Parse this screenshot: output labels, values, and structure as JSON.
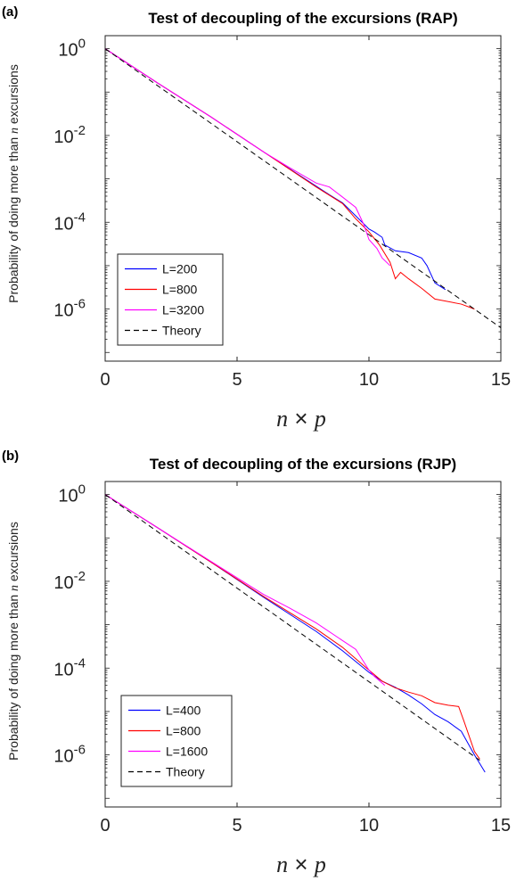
{
  "chart_data": [
    {
      "type": "line",
      "panel": "(a)",
      "title": "Test of decoupling of the excursions (RAP)",
      "xlabel_pre": "n",
      "xlabel_op": " × ",
      "xlabel_post": "p",
      "ylabel_pre": "Probability of doing more than ",
      "ylabel_var": "n",
      "ylabel_post": " excursions",
      "xlim": [
        0,
        15
      ],
      "ylim_exp": [
        -7.2,
        0.3
      ],
      "xticks": [
        "0",
        "5",
        "10",
        "15"
      ],
      "yticks": [
        {
          "base": "10",
          "exp": "0"
        },
        {
          "base": "10",
          "exp": "-2"
        },
        {
          "base": "10",
          "exp": "-4"
        },
        {
          "base": "10",
          "exp": "-6"
        }
      ],
      "legend_position": "bottom-left",
      "series": [
        {
          "name": "L=200",
          "color": "#0000ff",
          "dashed": false,
          "points": [
            [
              0,
              1
            ],
            [
              2,
              0.16
            ],
            [
              4,
              0.027
            ],
            [
              6,
              0.0042
            ],
            [
              8,
              0.00068
            ],
            [
              8.5,
              0.00043
            ],
            [
              9,
              0.00028
            ],
            [
              9.5,
              0.00014
            ],
            [
              10,
              7e-05
            ],
            [
              10.2,
              6e-05
            ],
            [
              10.5,
              4.5e-05
            ],
            [
              10.6,
              3e-05
            ],
            [
              11,
              2.2e-05
            ],
            [
              11.5,
              2e-05
            ],
            [
              12,
              1.5e-05
            ],
            [
              12.2,
              1e-05
            ],
            [
              12.5,
              4e-06
            ],
            [
              12.9,
              2.8e-06
            ]
          ]
        },
        {
          "name": "L=800",
          "color": "#ff0000",
          "dashed": false,
          "points": [
            [
              0,
              1
            ],
            [
              2,
              0.16
            ],
            [
              4,
              0.027
            ],
            [
              6,
              0.0042
            ],
            [
              8,
              0.00065
            ],
            [
              9,
              0.00027
            ],
            [
              9.5,
              0.00012
            ],
            [
              10,
              6e-05
            ],
            [
              10.4,
              3e-05
            ],
            [
              10.8,
              1.2e-05
            ],
            [
              11,
              5e-06
            ],
            [
              11.2,
              7e-06
            ],
            [
              11.5,
              5e-06
            ],
            [
              12,
              3e-06
            ],
            [
              12.5,
              1.7e-06
            ],
            [
              13.5,
              1.3e-06
            ],
            [
              14,
              1e-06
            ]
          ]
        },
        {
          "name": "L=3200",
          "color": "#ff00ff",
          "dashed": false,
          "points": [
            [
              0,
              1
            ],
            [
              2,
              0.16
            ],
            [
              4,
              0.027
            ],
            [
              6,
              0.0042
            ],
            [
              7,
              0.0018
            ],
            [
              8,
              0.0008
            ],
            [
              8.5,
              0.00065
            ],
            [
              9,
              0.00038
            ],
            [
              9.5,
              0.00022
            ],
            [
              9.8,
              9e-05
            ],
            [
              10,
              4e-05
            ],
            [
              10.3,
              2.5e-05
            ],
            [
              10.5,
              1.5e-05
            ],
            [
              10.8,
              1e-05
            ]
          ]
        },
        {
          "name": "Theory",
          "color": "#000000",
          "dashed": true,
          "points": [
            [
              0,
              1
            ],
            [
              15,
              3.7e-07
            ]
          ]
        }
      ]
    },
    {
      "type": "line",
      "panel": "(b)",
      "title": "Test of decoupling of the excursions (RJP)",
      "xlabel_pre": "n",
      "xlabel_op": " × ",
      "xlabel_post": "p",
      "ylabel_pre": "Probability of doing more than ",
      "ylabel_var": "n",
      "ylabel_post": " excursions",
      "xlim": [
        0,
        15
      ],
      "ylim_exp": [
        -7.2,
        0.3
      ],
      "xticks": [
        "0",
        "5",
        "10",
        "15"
      ],
      "yticks": [
        {
          "base": "10",
          "exp": "0"
        },
        {
          "base": "10",
          "exp": "-2"
        },
        {
          "base": "10",
          "exp": "-4"
        },
        {
          "base": "10",
          "exp": "-6"
        }
      ],
      "legend_position": "bottom-left",
      "series": [
        {
          "name": "L=400",
          "color": "#0000ff",
          "dashed": false,
          "points": [
            [
              0,
              1
            ],
            [
              2,
              0.17
            ],
            [
              4,
              0.028
            ],
            [
              6,
              0.0043
            ],
            [
              8,
              0.0007
            ],
            [
              9,
              0.00025
            ],
            [
              10,
              8e-05
            ],
            [
              10.5,
              5e-05
            ],
            [
              11,
              3.6e-05
            ],
            [
              11.5,
              2.4e-05
            ],
            [
              12,
              1.5e-05
            ],
            [
              12.5,
              8.5e-06
            ],
            [
              13,
              5.8e-06
            ],
            [
              13.5,
              3.5e-06
            ],
            [
              14,
              1e-06
            ],
            [
              14.4,
              4e-07
            ]
          ]
        },
        {
          "name": "L=800",
          "color": "#ff0000",
          "dashed": false,
          "points": [
            [
              0,
              1
            ],
            [
              2,
              0.17
            ],
            [
              4,
              0.028
            ],
            [
              6,
              0.0045
            ],
            [
              8,
              0.0008
            ],
            [
              9,
              0.0003
            ],
            [
              10,
              9e-05
            ],
            [
              10.5,
              5e-05
            ],
            [
              11,
              3.5e-05
            ],
            [
              11.5,
              2.8e-05
            ],
            [
              12,
              2.3e-05
            ],
            [
              12.5,
              1.6e-05
            ],
            [
              13,
              1.4e-05
            ],
            [
              13.4,
              1.3e-05
            ],
            [
              13.6,
              6e-06
            ],
            [
              14,
              1.2e-06
            ],
            [
              14.2,
              8e-07
            ]
          ]
        },
        {
          "name": "L=1600",
          "color": "#ff00ff",
          "dashed": false,
          "points": [
            [
              0,
              1
            ],
            [
              2,
              0.17
            ],
            [
              4,
              0.029
            ],
            [
              6,
              0.005
            ],
            [
              7,
              0.0024
            ],
            [
              8,
              0.0011
            ],
            [
              9,
              0.00043
            ],
            [
              9.5,
              0.00027
            ],
            [
              10,
              9e-05
            ],
            [
              10.2,
              6.5e-05
            ],
            [
              10.6,
              4e-05
            ]
          ]
        },
        {
          "name": "Theory",
          "color": "#000000",
          "dashed": true,
          "points": [
            [
              0,
              1
            ],
            [
              14.2,
              7.5e-07
            ]
          ]
        }
      ]
    }
  ]
}
